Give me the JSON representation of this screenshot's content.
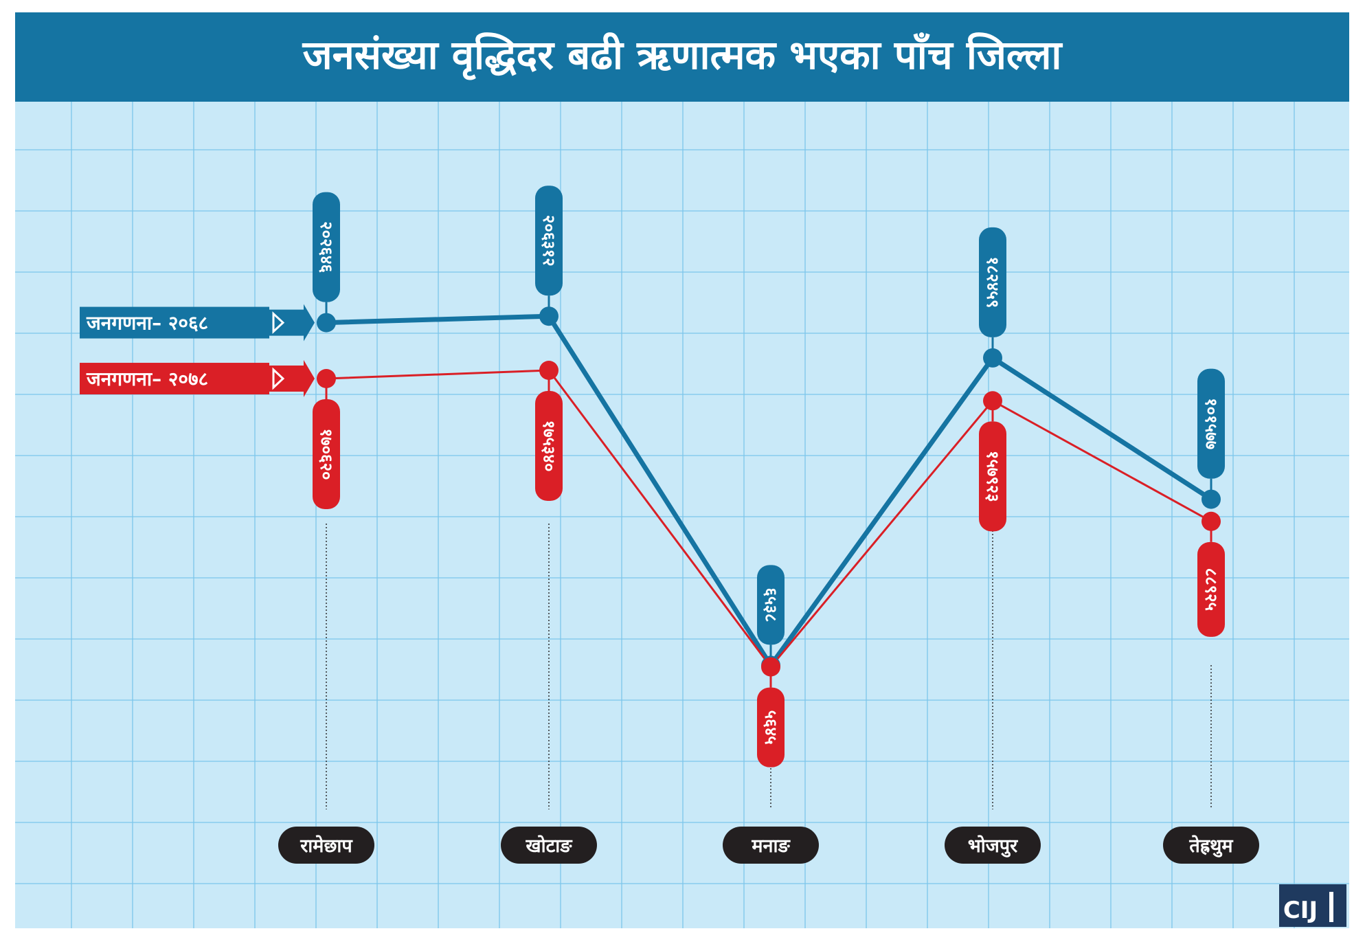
{
  "chart_data": {
    "type": "line",
    "title": "जनसंख्या वृद्धिदर बढी ऋणात्मक भएका पाँच जिल्ला",
    "categories": [
      "रामेछाप",
      "खोटाङ",
      "मनाङ",
      "भोजपुर",
      "तेह्रथुम"
    ],
    "series": [
      {
        "name": "जनगणना– २०६८",
        "color": "#1574a2",
        "values": [
          202646,
          206312,
          6538,
          182459,
          101577
        ],
        "labels": [
          "२०२६४६",
          "२०६३१२",
          "६५३८",
          "१८२४५९",
          "१०१५७७"
        ]
      },
      {
        "name": "जनगणना– २०७८",
        "color": "#da1f26",
        "values": [
          170620,
          175340,
          5645,
          157923,
          88925
        ],
        "labels": [
          "१७०६२०",
          "१७५३४०",
          "५६४५",
          "१५७९२३",
          "८८९२५"
        ]
      }
    ],
    "legend": "left",
    "grid": true
  },
  "colors": {
    "title_bar": "#1574a2",
    "plot_background": "#c9e9f8",
    "grid_line": "#7cc6ea",
    "series_2068": "#1574a2",
    "series_2078": "#da1f26",
    "category_pill": "#231f20"
  },
  "logo": {
    "text": "CIJ"
  }
}
